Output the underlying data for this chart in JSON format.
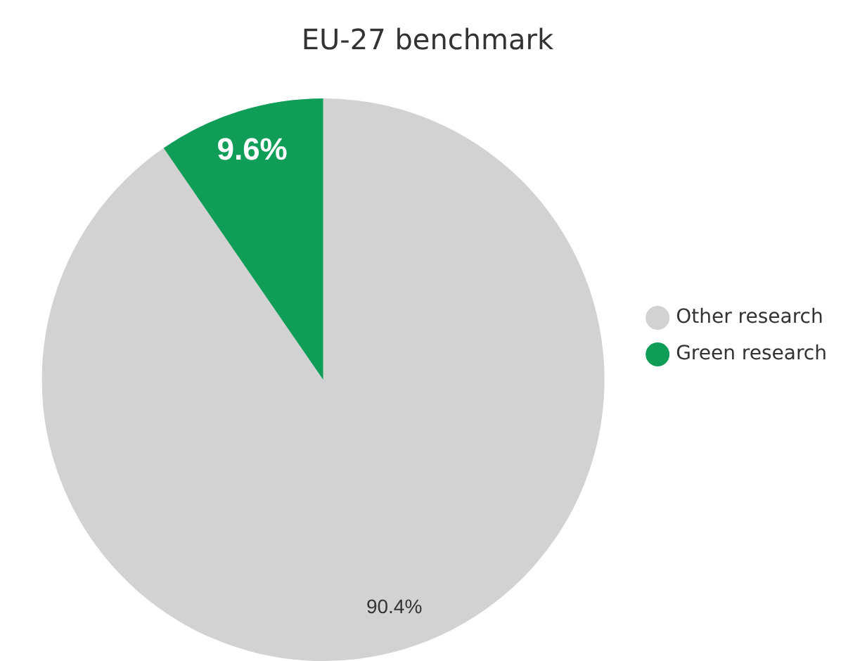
{
  "chart_data": {
    "type": "pie",
    "title": "EU-27 benchmark",
    "categories": [
      "Other research",
      "Green research"
    ],
    "values": [
      90.4,
      9.6
    ],
    "colors": [
      "#d2d2d2",
      "#0f9d58"
    ],
    "value_labels": [
      "90.4%",
      "9.6%"
    ],
    "legend": "right"
  }
}
